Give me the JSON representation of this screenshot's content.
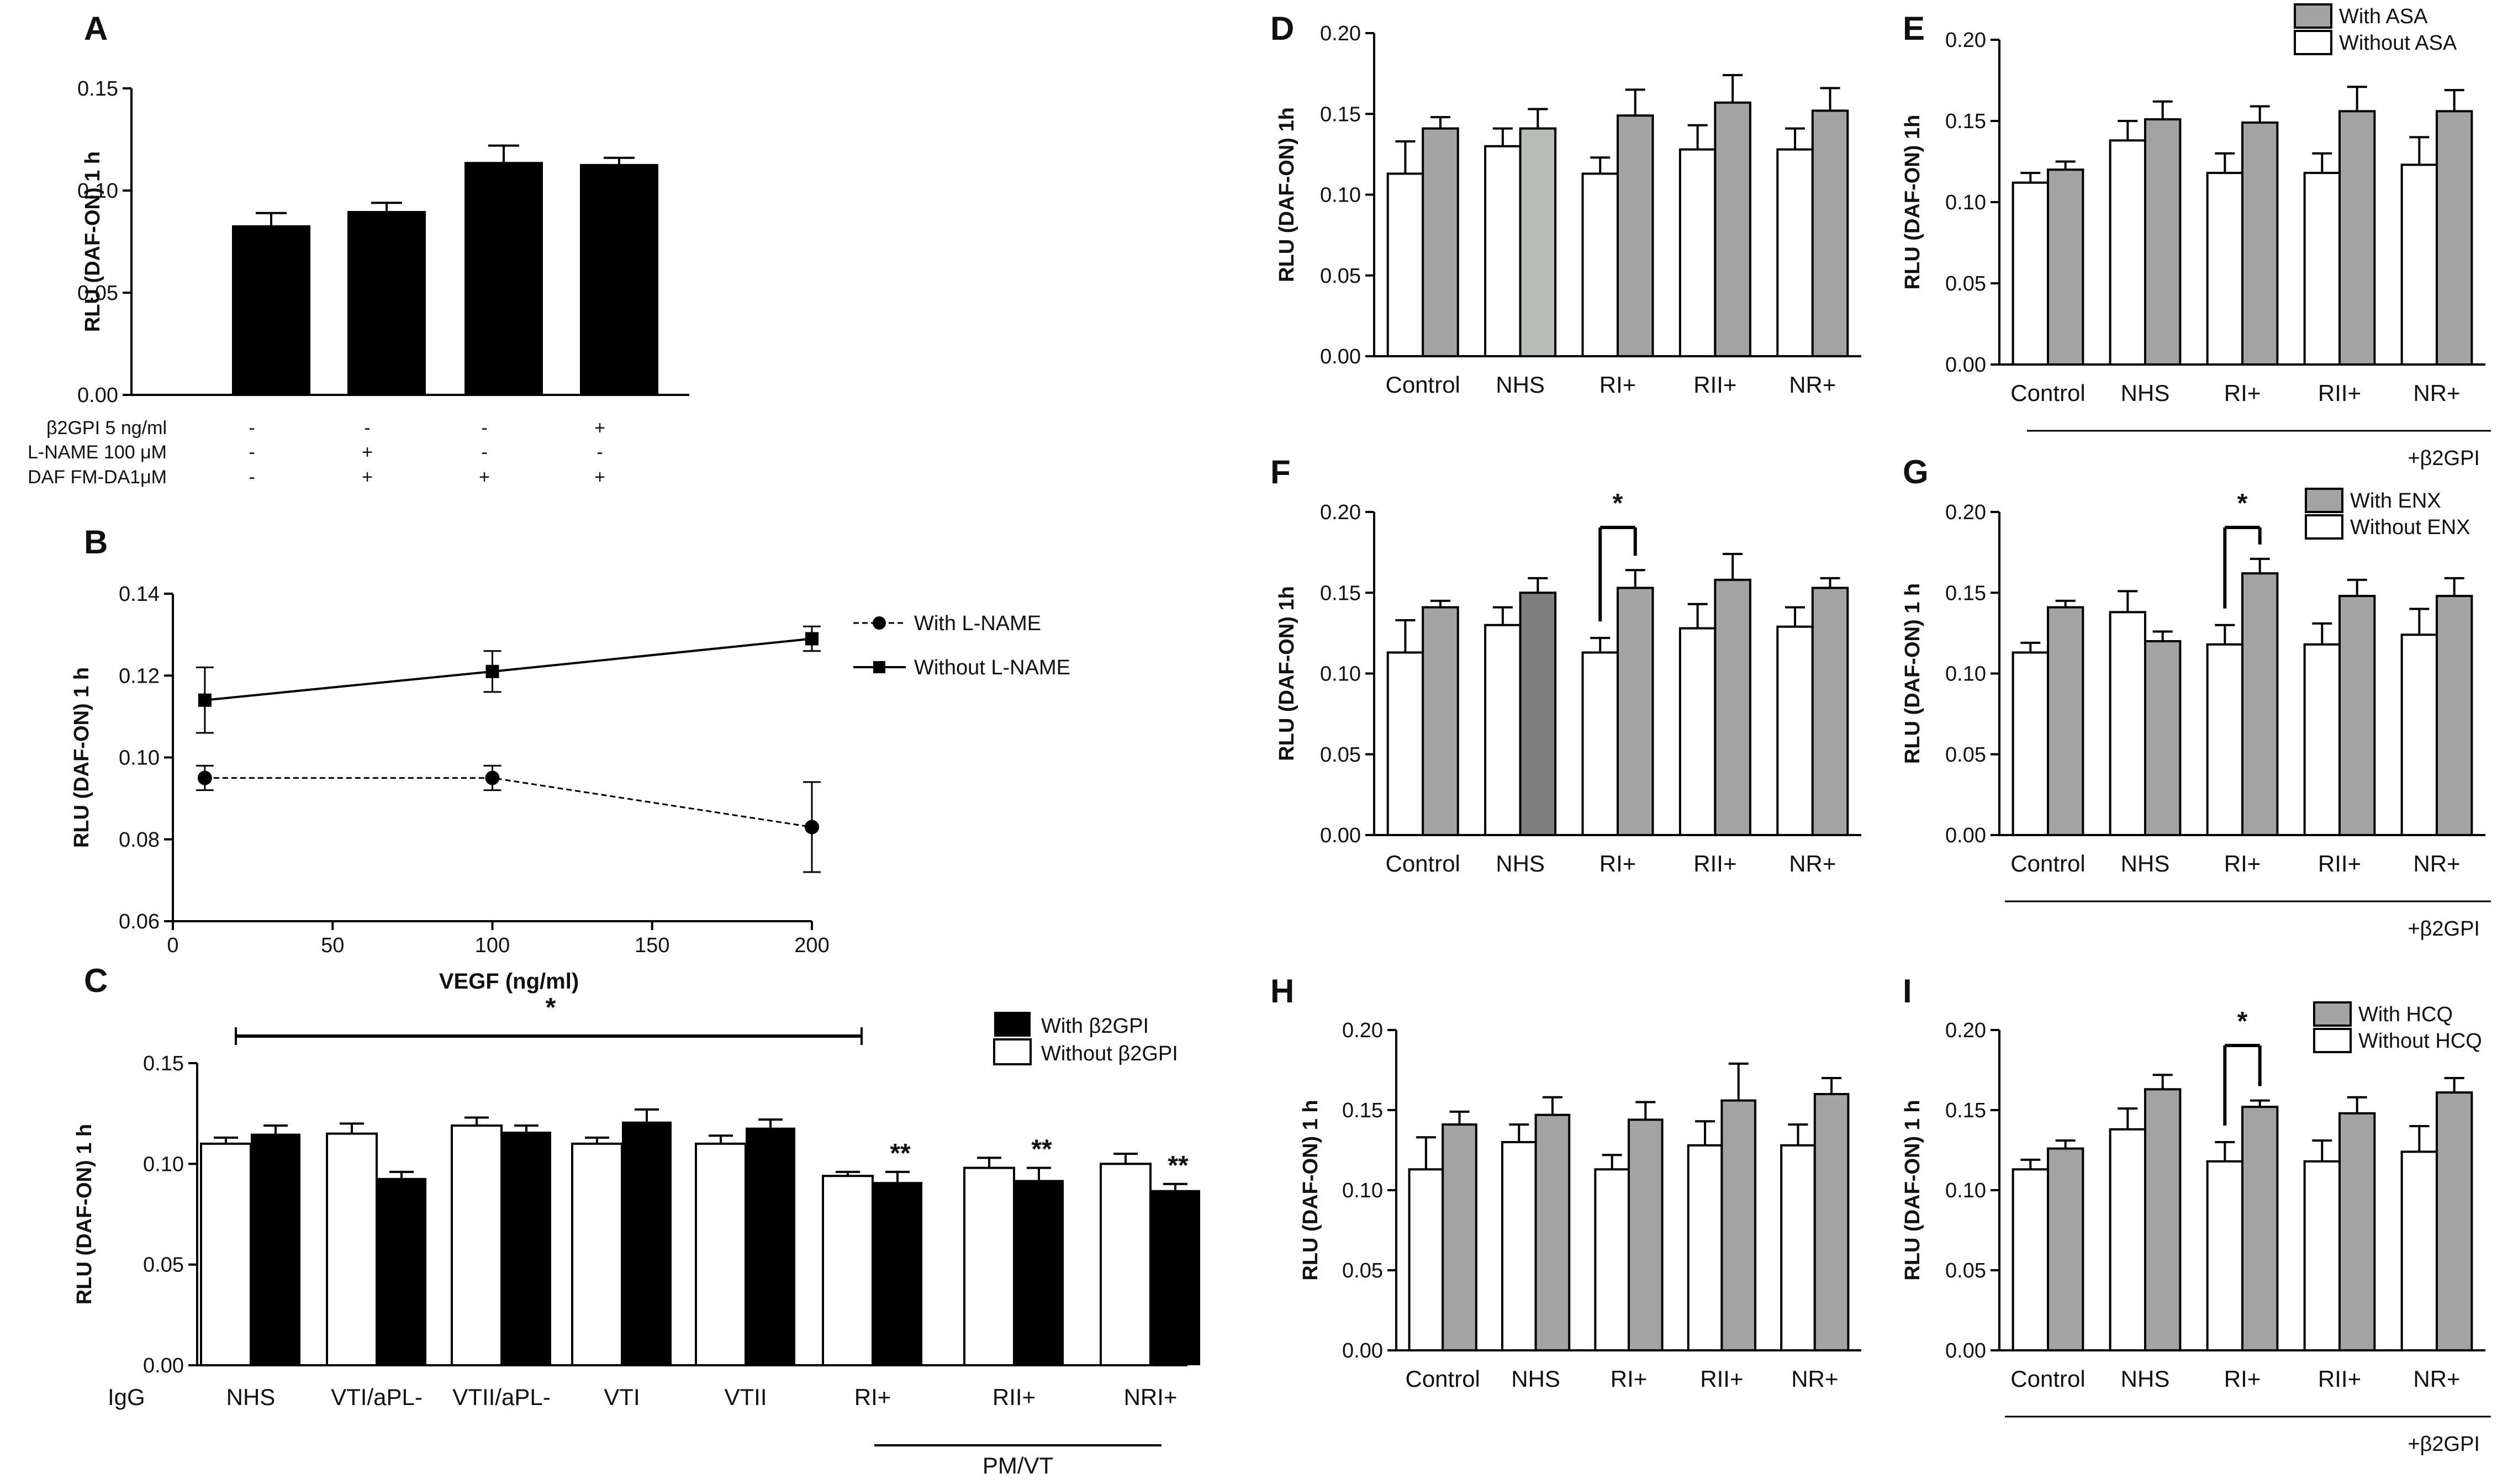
{
  "colors": {
    "black": "#000000",
    "gray": "#a3a3a3",
    "white": "#ffffff",
    "lightgray": "#e2e2e2"
  },
  "chart_data": [
    {
      "id": "A",
      "type": "bar",
      "label": "A",
      "ylabel": "RLU (DAF-ON) 1 h",
      "ylim": [
        0,
        0.15
      ],
      "yticks": [
        "0.00",
        "0.05",
        "0.10",
        "0.15"
      ],
      "series": [
        {
          "name": "RLU",
          "values": [
            0.083,
            0.09,
            0.114,
            0.113
          ],
          "errors": [
            0.006,
            0.004,
            0.008,
            0.003
          ]
        }
      ],
      "conditions": [
        {
          "label": "β2GPI 5 ng/ml",
          "marks": [
            "-",
            "-",
            "-",
            "+"
          ]
        },
        {
          "label": "L-NAME 100 μM",
          "marks": [
            "-",
            "+",
            "-",
            "-"
          ]
        },
        {
          "label": "DAF FM-DA1μM",
          "marks": [
            "-",
            "+",
            "+",
            "+"
          ]
        }
      ]
    },
    {
      "id": "B",
      "type": "line",
      "label": "B",
      "ylabel": "RLU (DAF-ON) 1 h",
      "xlabel": "VEGF  (ng/ml)",
      "xlim": [
        0,
        200
      ],
      "ylim": [
        0.06,
        0.14
      ],
      "xticks": [
        "0",
        "50",
        "100",
        "150",
        "200"
      ],
      "yticks": [
        "0.06",
        "0.08",
        "0.10",
        "0.12",
        "0.14"
      ],
      "x": [
        10,
        100,
        200
      ],
      "series": [
        {
          "name": "With L-NAME",
          "values": [
            0.095,
            0.095,
            0.083
          ],
          "errors": [
            0.003,
            0.003,
            0.011
          ],
          "marker": "circle",
          "style": "dashed"
        },
        {
          "name": "Without L-NAME",
          "values": [
            0.114,
            0.121,
            0.129
          ],
          "errors": [
            0.008,
            0.005,
            0.003
          ],
          "marker": "square",
          "style": "solid"
        }
      ]
    },
    {
      "id": "C",
      "type": "bar",
      "label": "C",
      "ylabel": "RLU (DAF-ON) 1 h",
      "ylim": [
        0,
        0.15
      ],
      "yticks": [
        "0.00",
        "0.05",
        "0.10",
        "0.15"
      ],
      "categories": [
        "NHS",
        "VTI/aPL-",
        "VTII/aPL-",
        "VTI",
        "VTII",
        "RI+",
        "RII+",
        "NRI+"
      ],
      "first_label": "IgG",
      "legend": [
        "With β2GPI",
        "Without β2GPI"
      ],
      "series": [
        {
          "name": "Without β2GPI",
          "values": [
            0.11,
            0.115,
            0.119,
            0.11,
            0.11,
            0.094,
            0.098,
            0.1
          ],
          "errors": [
            0.003,
            0.005,
            0.004,
            0.003,
            0.004,
            0.002,
            0.005,
            0.005
          ]
        },
        {
          "name": "With β2GPI",
          "values": [
            0.115,
            0.093,
            0.116,
            0.121,
            0.118,
            0.091,
            0.092,
            0.087
          ],
          "errors": [
            0.004,
            0.003,
            0.003,
            0.006,
            0.004,
            0.005,
            0.006,
            0.003
          ]
        }
      ],
      "stars": [
        "",
        "",
        "",
        "",
        "",
        "**",
        "**",
        "**"
      ],
      "bracket_star": "*",
      "group_label": "PM/VT"
    },
    {
      "id": "D",
      "type": "bar",
      "label": "D",
      "ylabel": "RLU (DAF-ON)  1h",
      "ylim": [
        0,
        0.2
      ],
      "yticks": [
        "0.00",
        "0.05",
        "0.10",
        "0.15",
        "0.20"
      ],
      "categories": [
        "Control",
        "NHS",
        "RI+",
        "RII+",
        "NR+"
      ],
      "series": [
        {
          "name": "Without",
          "values": [
            0.113,
            0.13,
            0.113,
            0.128,
            0.128
          ],
          "errors": [
            0.02,
            0.011,
            0.01,
            0.015,
            0.013
          ]
        },
        {
          "name": "With",
          "values": [
            0.141,
            0.141,
            0.149,
            0.157,
            0.152
          ],
          "errors": [
            0.007,
            0.012,
            0.016,
            0.017,
            0.014
          ]
        }
      ]
    },
    {
      "id": "E",
      "type": "bar",
      "label": "E",
      "ylabel": "RLU (DAF-ON)  1h",
      "ylim": [
        0,
        0.2
      ],
      "yticks": [
        "0.00",
        "0.05",
        "0.10",
        "0.15",
        "0.20"
      ],
      "categories": [
        "Control",
        "NHS",
        "RI+",
        "RII+",
        "NR+"
      ],
      "legend": [
        "With ASA",
        "Without ASA"
      ],
      "note": "+β2GPI",
      "series": [
        {
          "name": "Without ASA",
          "values": [
            0.112,
            0.138,
            0.118,
            0.118,
            0.123
          ],
          "errors": [
            0.006,
            0.012,
            0.012,
            0.012,
            0.017
          ]
        },
        {
          "name": "With ASA",
          "values": [
            0.12,
            0.151,
            0.149,
            0.156,
            0.156
          ],
          "errors": [
            0.005,
            0.011,
            0.01,
            0.015,
            0.013
          ]
        }
      ]
    },
    {
      "id": "F",
      "type": "bar",
      "label": "F",
      "ylabel": "RLU (DAF-ON)  1h",
      "ylim": [
        0,
        0.2
      ],
      "yticks": [
        "0.00",
        "0.05",
        "0.10",
        "0.15",
        "0.20"
      ],
      "categories": [
        "Control",
        "NHS",
        "RI+",
        "RII+",
        "NR+"
      ],
      "bracket_star": "*",
      "series": [
        {
          "name": "Without",
          "values": [
            0.113,
            0.13,
            0.113,
            0.128,
            0.129
          ],
          "errors": [
            0.02,
            0.011,
            0.009,
            0.015,
            0.012
          ]
        },
        {
          "name": "With",
          "values": [
            0.141,
            0.15,
            0.153,
            0.158,
            0.153
          ],
          "errors": [
            0.004,
            0.009,
            0.011,
            0.016,
            0.006
          ]
        }
      ]
    },
    {
      "id": "G",
      "type": "bar",
      "label": "G",
      "ylabel": "RLU (DAF-ON) 1 h",
      "ylim": [
        0,
        0.2
      ],
      "yticks": [
        "0.00",
        "0.05",
        "0.10",
        "0.15",
        "0.20"
      ],
      "categories": [
        "Control",
        "NHS",
        "RI+",
        "RII+",
        "NR+"
      ],
      "legend": [
        "With ENX",
        "Without ENX"
      ],
      "note": "+β2GPI",
      "bracket_star": "*",
      "series": [
        {
          "name": "Without ENX",
          "values": [
            0.113,
            0.138,
            0.118,
            0.118,
            0.124
          ],
          "errors": [
            0.006,
            0.013,
            0.012,
            0.013,
            0.016
          ]
        },
        {
          "name": "With ENX",
          "values": [
            0.141,
            0.12,
            0.162,
            0.148,
            0.148
          ],
          "errors": [
            0.004,
            0.006,
            0.009,
            0.01,
            0.011
          ]
        }
      ]
    },
    {
      "id": "H",
      "type": "bar",
      "label": "H",
      "ylabel": "RLU (DAF-ON) 1 h",
      "ylim": [
        0,
        0.2
      ],
      "yticks": [
        "0.00",
        "0.05",
        "0.10",
        "0.15",
        "0.20"
      ],
      "categories": [
        "Control",
        "NHS",
        "RI+",
        "RII+",
        "NR+"
      ],
      "series": [
        {
          "name": "Without",
          "values": [
            0.113,
            0.13,
            0.113,
            0.128,
            0.128
          ],
          "errors": [
            0.02,
            0.011,
            0.009,
            0.015,
            0.013
          ]
        },
        {
          "name": "With",
          "values": [
            0.141,
            0.147,
            0.144,
            0.156,
            0.16
          ],
          "errors": [
            0.008,
            0.011,
            0.011,
            0.023,
            0.01
          ]
        }
      ]
    },
    {
      "id": "I",
      "type": "bar",
      "label": "I",
      "ylabel": "RLU (DAF-ON) 1 h",
      "ylim": [
        0,
        0.2
      ],
      "yticks": [
        "0.00",
        "0.05",
        "0.10",
        "0.15",
        "0.20"
      ],
      "categories": [
        "Control",
        "NHS",
        "RI+",
        "RII+",
        "NR+"
      ],
      "legend": [
        "With HCQ",
        "Without HCQ"
      ],
      "note": "+β2GPI",
      "bracket_star": "*",
      "series": [
        {
          "name": "Without HCQ",
          "values": [
            0.113,
            0.138,
            0.118,
            0.118,
            0.124
          ],
          "errors": [
            0.006,
            0.013,
            0.012,
            0.013,
            0.016
          ]
        },
        {
          "name": "With HCQ",
          "values": [
            0.126,
            0.163,
            0.152,
            0.148,
            0.161
          ],
          "errors": [
            0.005,
            0.009,
            0.004,
            0.01,
            0.009
          ]
        }
      ]
    }
  ]
}
